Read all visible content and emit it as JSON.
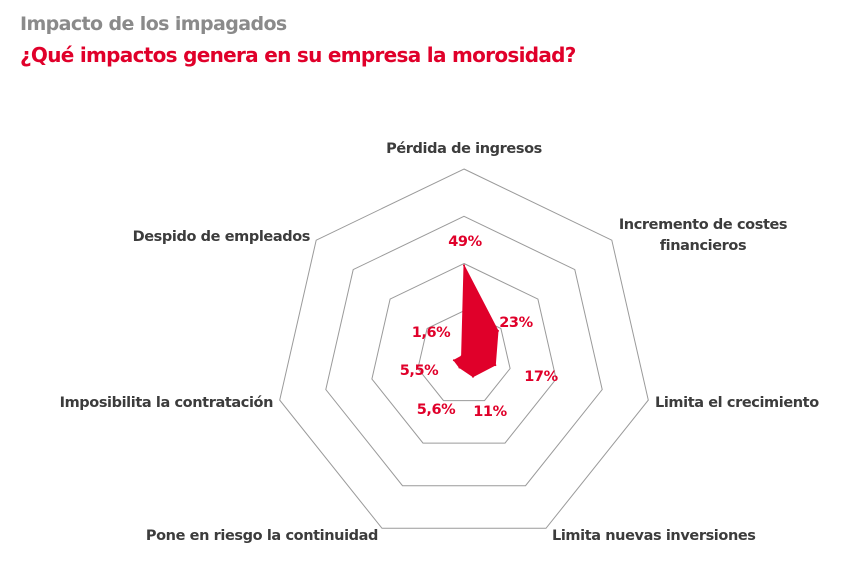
{
  "header": {
    "title": "Impacto de los impagados",
    "subtitle": "¿Qué impactos genera en su empresa la morosidad?"
  },
  "chart_data": {
    "type": "radar",
    "title": "Impacto de los impagados",
    "subtitle": "¿Qué impactos genera en su empresa la morosidad?",
    "categories": [
      "Pérdida de ingresos",
      "Incremento de costes financieros",
      "Limita el crecimiento",
      "Limita nuevas inversiones",
      "Pone en riesgo la continuidad",
      "Imposibilita la contratación",
      "Despido de empleados"
    ],
    "category_lines": [
      [
        "Pérdida de ingresos"
      ],
      [
        "Incremento de costes",
        "financieros"
      ],
      [
        "Limita el crecimiento"
      ],
      [
        "Limita nuevas inversiones"
      ],
      [
        "Pone en riesgo la continuidad"
      ],
      [
        "Imposibilita la contratación"
      ],
      [
        "Despido de empleados"
      ]
    ],
    "values": [
      49,
      23,
      17,
      11,
      5.6,
      5.5,
      1.6
    ],
    "value_labels": [
      "49%",
      "23%",
      "17%",
      "11%",
      "5,6%",
      "5,5%",
      "1,6%"
    ],
    "unit": "%",
    "range": [
      0,
      100
    ],
    "rings": [
      25,
      50,
      75,
      100
    ],
    "colors": {
      "series": "#e0002a",
      "grid": "#9a9a9a",
      "labels": "#3c3c3c",
      "title": "#8a8a8a",
      "subtitle": "#e0002a"
    }
  }
}
